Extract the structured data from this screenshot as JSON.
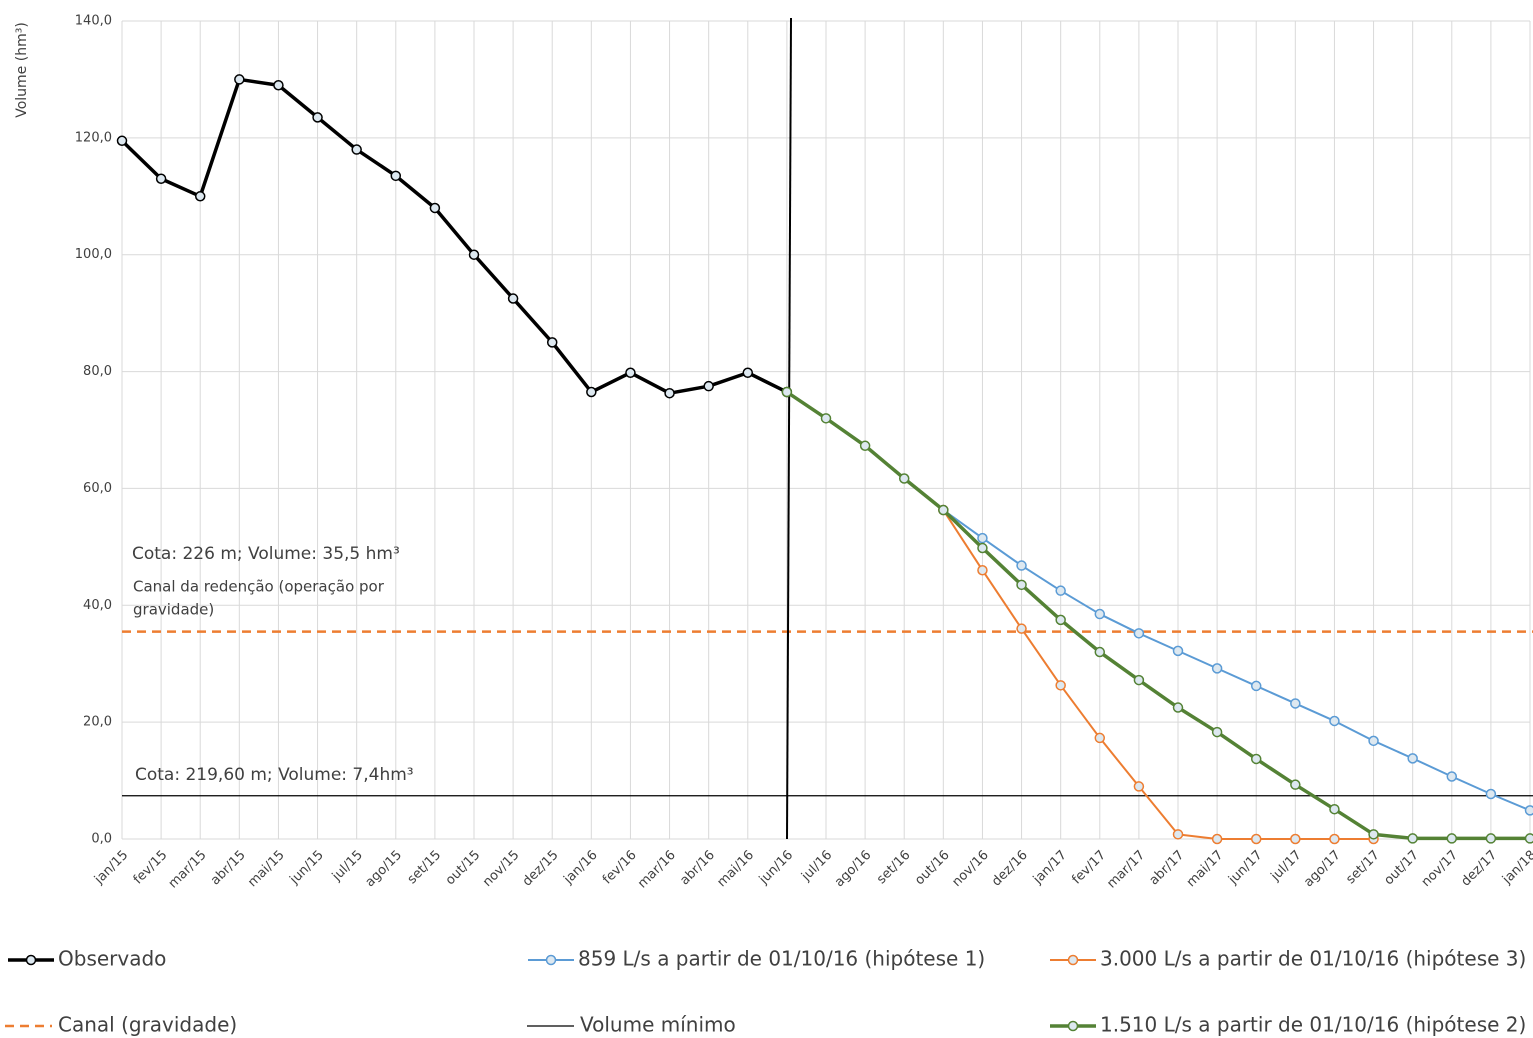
{
  "chart_data": {
    "type": "line",
    "y_label": "Volume (hm³)",
    "categories": [
      "jan/15",
      "fev/15",
      "mar/15",
      "abr/15",
      "mai/15",
      "jun/15",
      "jul/15",
      "ago/15",
      "set/15",
      "out/15",
      "nov/15",
      "dez/15",
      "jan/16",
      "fev/16",
      "mar/16",
      "abr/16",
      "mai/16",
      "jun/16",
      "jul/16",
      "ago/16",
      "set/16",
      "out/16",
      "nov/16",
      "dez/16",
      "jan/17",
      "fev/17",
      "mar/17",
      "abr/17",
      "mai/17",
      "jun/17",
      "jul/17",
      "ago/17",
      "set/17",
      "out/17",
      "nov/17",
      "dez/17",
      "jan/18"
    ],
    "series": [
      {
        "name": "Observado",
        "color": "#000000",
        "width": 3.5,
        "values": [
          119.5,
          113,
          110,
          130,
          129,
          123.5,
          118,
          113.5,
          108,
          100,
          92.5,
          85,
          76.5,
          79.8,
          76.3,
          77.5,
          79.8,
          76.5,
          null,
          null,
          null,
          null,
          null,
          null,
          null,
          null,
          null,
          null,
          null,
          null,
          null,
          null,
          null,
          null,
          null,
          null,
          null
        ]
      },
      {
        "name": "859 L/s a partir de 01/10/16 (hipótese 1)",
        "color": "#5b9bd5",
        "width": 2,
        "values": [
          null,
          null,
          null,
          null,
          null,
          null,
          null,
          null,
          null,
          null,
          null,
          null,
          null,
          null,
          null,
          null,
          null,
          null,
          null,
          null,
          null,
          56.3,
          51.5,
          46.8,
          42.5,
          38.5,
          35.2,
          32.2,
          29.2,
          26.2,
          23.2,
          20.2,
          16.8,
          13.8,
          10.7,
          7.7,
          4.9
        ]
      },
      {
        "name": "3.000 L/s a partir de 01/10/16 (hipótese 3)",
        "color": "#ed7d31",
        "width": 2,
        "values": [
          null,
          null,
          null,
          null,
          null,
          null,
          null,
          null,
          null,
          null,
          null,
          null,
          null,
          null,
          null,
          null,
          null,
          null,
          null,
          null,
          null,
          56.3,
          46,
          36,
          26.3,
          17.3,
          9,
          0.8,
          0,
          0,
          0,
          0,
          0,
          null,
          null,
          null,
          null
        ]
      },
      {
        "name": "1.510 L/s a partir de 01/10/16 (hipótese 2)",
        "color": "#548235",
        "width": 3.5,
        "values": [
          null,
          null,
          null,
          null,
          null,
          null,
          null,
          null,
          null,
          null,
          null,
          null,
          null,
          null,
          null,
          null,
          null,
          76.5,
          72,
          67.3,
          61.7,
          56.3,
          49.8,
          43.5,
          37.5,
          32,
          27.2,
          22.5,
          18.3,
          13.7,
          9.3,
          5.1,
          0.8,
          0.1,
          0.1,
          0.1,
          0.1
        ]
      }
    ],
    "reference_lines": [
      {
        "name": "Canal (gravidade)",
        "value": 35.5,
        "color": "#ed7d31",
        "dashed": true
      },
      {
        "name": "Volume mínimo",
        "value": 7.4,
        "color": "#000000",
        "dashed": false
      }
    ],
    "annotations": [
      "Cota: 226 m; Volume: 35,5 hm³",
      "Canal da redenção  (operação por",
      "gravidade)",
      "Cota: 219,60 m; Volume: 7,4hm³"
    ],
    "ylim": [
      0,
      140
    ],
    "yticks": [
      {
        "value": 0,
        "label": "0,0"
      },
      {
        "value": 20,
        "label": "20,0"
      },
      {
        "value": 40,
        "label": "40,0"
      },
      {
        "value": 60,
        "label": "60,0"
      },
      {
        "value": 80,
        "label": "80,0"
      },
      {
        "value": 100,
        "label": "100,0"
      },
      {
        "value": 120,
        "label": "120,0"
      },
      {
        "value": 140,
        "label": "140,0"
      }
    ],
    "grid": true
  }
}
